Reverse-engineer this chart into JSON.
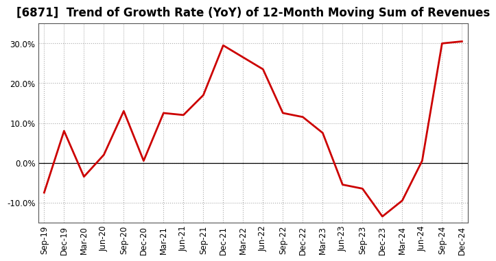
{
  "title": "[6871]  Trend of Growth Rate (YoY) of 12-Month Moving Sum of Revenues",
  "x_labels": [
    "Sep-19",
    "Dec-19",
    "Mar-20",
    "Jun-20",
    "Sep-20",
    "Dec-20",
    "Mar-21",
    "Jun-21",
    "Sep-21",
    "Dec-21",
    "Mar-22",
    "Jun-22",
    "Sep-22",
    "Dec-22",
    "Mar-23",
    "Jun-23",
    "Sep-23",
    "Dec-23",
    "Mar-24",
    "Jun-24",
    "Sep-24",
    "Dec-24"
  ],
  "y_values": [
    -7.5,
    8.0,
    -3.5,
    2.0,
    13.0,
    0.5,
    12.5,
    12.0,
    17.0,
    29.5,
    26.5,
    23.5,
    12.5,
    11.5,
    7.5,
    -5.5,
    -6.5,
    -13.5,
    -9.5,
    0.5,
    30.0,
    30.5
  ],
  "line_color": "#cc0000",
  "line_width": 2.0,
  "ylim": [
    -15,
    35
  ],
  "yticks": [
    -10,
    0,
    10,
    20,
    30
  ],
  "ytick_labels": [
    "-10.0%",
    "0.0%",
    "10.0%",
    "20.0%",
    "30.0%"
  ],
  "grid_color": "#aaaaaa",
  "background_color": "#ffffff",
  "title_fontsize": 12,
  "tick_fontsize": 8.5,
  "spine_color": "#555555"
}
